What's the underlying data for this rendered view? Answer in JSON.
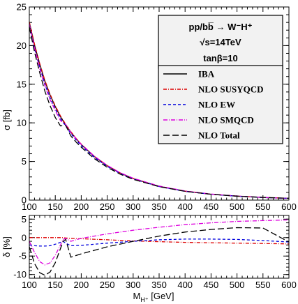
{
  "colors": {
    "iba": "#000000",
    "nlo_susyqcd": "#dd0000",
    "nlo_ew": "#0000dd",
    "nlo_smqcd": "#dd00dd",
    "nlo_total": "#000000",
    "box_fill": "#f2f2f2"
  },
  "chart_data": [
    {
      "type": "line",
      "title_lines": [
        "pp/bb̅ → W⁻H⁺",
        "√s=14TeV",
        "tanβ=10"
      ],
      "xlabel": "",
      "ylabel": "σ [fb]",
      "xlim": [
        100,
        600
      ],
      "ylim": [
        0,
        25
      ],
      "xticks": [
        100,
        150,
        200,
        250,
        300,
        350,
        400,
        450,
        500,
        550,
        600
      ],
      "yticks": [
        0,
        5,
        10,
        15,
        20,
        25
      ],
      "legend_position": "top-right",
      "grid": false,
      "x": [
        100,
        110,
        120,
        130,
        140,
        150,
        160,
        170,
        180,
        190,
        200,
        225,
        250,
        275,
        300,
        350,
        400,
        450,
        500,
        550,
        600
      ],
      "series": [
        {
          "name": "IBA",
          "color_key": "iba",
          "dash": "",
          "values": [
            23.0,
            20.1,
            17.6,
            15.4,
            13.6,
            12.1,
            10.8,
            9.75,
            8.8,
            7.95,
            7.2,
            5.65,
            4.45,
            3.5,
            2.78,
            1.78,
            1.15,
            0.76,
            0.51,
            0.34,
            0.23
          ]
        },
        {
          "name": "NLO SUSYQCD",
          "color_key": "nlo_susyqcd",
          "dash": "5,2,1,2",
          "values": [
            23.1,
            20.2,
            17.7,
            15.5,
            13.7,
            12.2,
            10.9,
            9.82,
            8.86,
            8.0,
            7.25,
            5.69,
            4.48,
            3.52,
            2.8,
            1.79,
            1.16,
            0.765,
            0.513,
            0.342,
            0.231
          ]
        },
        {
          "name": "NLO EW",
          "color_key": "nlo_ew",
          "dash": "4,3",
          "values": [
            22.5,
            19.6,
            17.2,
            15.0,
            13.2,
            11.8,
            10.55,
            9.6,
            8.6,
            7.78,
            7.05,
            5.54,
            4.37,
            3.44,
            2.74,
            1.76,
            1.14,
            0.754,
            0.507,
            0.338,
            0.229
          ]
        },
        {
          "name": "NLO SMQCD",
          "color_key": "nlo_smqcd",
          "dash": "6,2,1,2",
          "values": [
            22.8,
            19.7,
            17.0,
            14.8,
            13.0,
            11.6,
            10.3,
            9.8,
            8.75,
            7.95,
            7.22,
            5.7,
            4.5,
            3.55,
            2.83,
            1.82,
            1.18,
            0.785,
            0.528,
            0.353,
            0.239
          ]
        },
        {
          "name": "NLO Total",
          "color_key": "nlo_total",
          "dash": "9,4",
          "values": [
            22.4,
            19.2,
            16.5,
            14.1,
            12.2,
            10.7,
            9.6,
            9.68,
            8.3,
            7.52,
            6.85,
            5.38,
            4.25,
            3.36,
            2.69,
            1.74,
            1.14,
            0.762,
            0.518,
            0.348,
            0.236
          ]
        }
      ]
    },
    {
      "type": "line",
      "xlabel": "Mₕ⁺ [GeV]",
      "xlabel_main": "M",
      "xlabel_sub": "H⁺",
      "xlabel_unit": " [GeV]",
      "ylabel": "δ [%]",
      "xlim": [
        100,
        600
      ],
      "ylim": [
        -11,
        6
      ],
      "xticks": [
        100,
        150,
        200,
        250,
        300,
        350,
        400,
        450,
        500,
        550,
        600
      ],
      "yticks": [
        -10,
        -5,
        0,
        5
      ],
      "grid": false,
      "x": [
        100,
        110,
        120,
        130,
        140,
        150,
        160,
        165,
        170,
        180,
        200,
        250,
        300,
        350,
        400,
        450,
        500,
        550,
        600
      ],
      "series": [
        {
          "name": "NLO SUSYQCD",
          "color_key": "nlo_susyqcd",
          "dash": "5,2,1,2",
          "values": [
            0.0,
            0.0,
            0.0,
            0.0,
            0.0,
            0.0,
            0.0,
            0.0,
            -0.1,
            -0.2,
            -0.3,
            -0.6,
            -0.9,
            -1.1,
            -1.3,
            -1.4,
            -1.5,
            -1.6,
            -1.7
          ]
        },
        {
          "name": "NLO EW",
          "color_key": "nlo_ew",
          "dash": "4,3",
          "values": [
            -2.0,
            -2.2,
            -2.3,
            -2.3,
            -2.2,
            -1.8,
            -1.3,
            -1.0,
            -1.5,
            -2.2,
            -2.1,
            -1.5,
            -1.0,
            -0.6,
            -0.4,
            -0.4,
            -0.5,
            -0.8,
            -1.2
          ]
        },
        {
          "name": "NLO SMQCD",
          "color_key": "nlo_smqcd",
          "dash": "6,2,1,2",
          "values": [
            -1.0,
            -4.0,
            -6.5,
            -7.4,
            -6.8,
            -4.8,
            -2.0,
            -0.5,
            -0.2,
            -1.0,
            -0.2,
            1.0,
            2.0,
            2.8,
            3.5,
            4.0,
            4.4,
            4.6,
            4.8
          ]
        },
        {
          "name": "NLO Total",
          "color_key": "nlo_total",
          "dash": "9,4",
          "values": [
            -2.5,
            -7.0,
            -9.5,
            -10.2,
            -9.3,
            -6.8,
            -3.0,
            -1.0,
            -0.5,
            -5.3,
            -4.4,
            -2.5,
            -1.0,
            0.4,
            1.5,
            2.2,
            2.7,
            2.6,
            -1.2
          ]
        }
      ]
    }
  ]
}
